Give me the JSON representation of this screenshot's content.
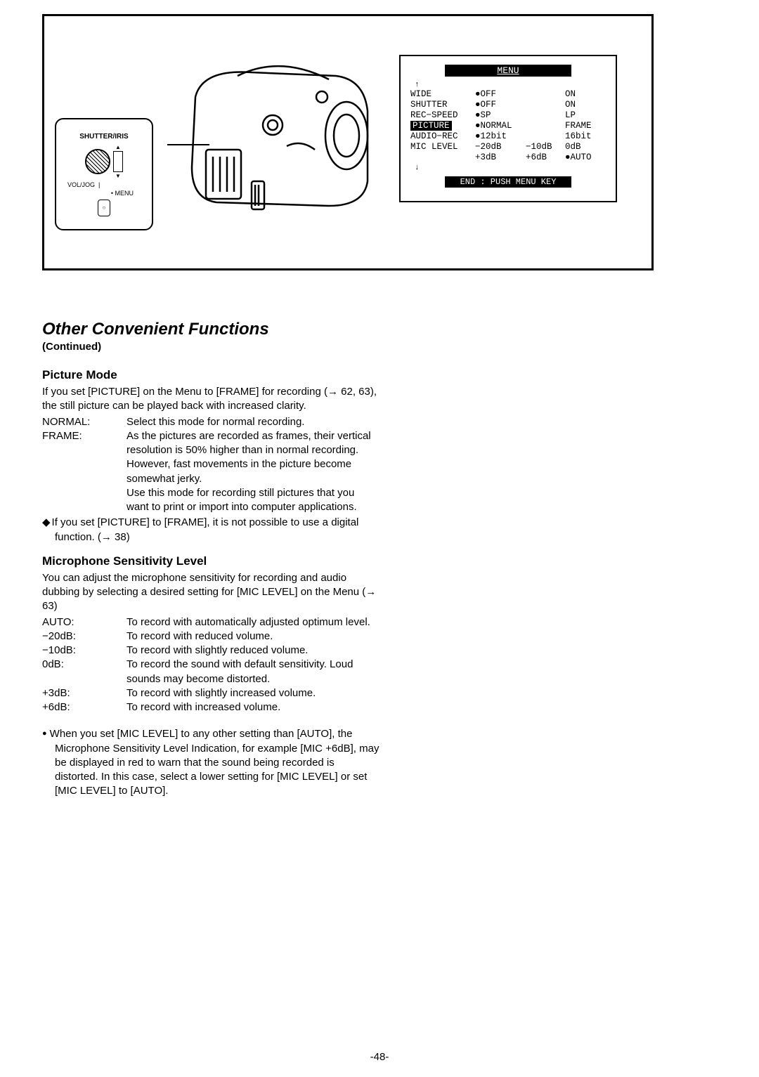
{
  "page_number": "-48-",
  "diagram": {
    "control_panel": {
      "title": "SHUTTER/IRIS",
      "vol_jog": "VOL/JOG",
      "line_mark": "|",
      "menu_label": "• MENU",
      "circle_mark": "○"
    },
    "menu_screen": {
      "title": "MENU",
      "rows": [
        {
          "name": "WIDE",
          "highlighted": false,
          "c1": "●OFF",
          "c1_dot": true,
          "c2": "",
          "c3": "ON"
        },
        {
          "name": "SHUTTER",
          "highlighted": false,
          "c1": "●OFF",
          "c1_dot": true,
          "c2": "",
          "c3": "ON"
        },
        {
          "name": "REC−SPEED",
          "highlighted": false,
          "c1": "●SP",
          "c1_dot": true,
          "c2": "",
          "c3": "LP"
        },
        {
          "name": "PICTURE",
          "highlighted": true,
          "c1": "●NORMAL",
          "c1_dot": true,
          "c2": "",
          "c3": "FRAME"
        },
        {
          "name": "AUDIO−REC",
          "highlighted": false,
          "c1": "●12bit",
          "c1_dot": true,
          "c2": "",
          "c3": "16bit"
        },
        {
          "name": "MIC  LEVEL",
          "highlighted": false,
          "c1": " −20dB",
          "c1_dot": false,
          "c2": "−10dB",
          "c3": "0dB"
        },
        {
          "name": "",
          "highlighted": false,
          "c1": " +3dB",
          "c1_dot": false,
          "c2": "+6dB",
          "c3": "●AUTO",
          "c3_dot": true
        }
      ],
      "footer": "END : PUSH MENU KEY"
    }
  },
  "section": {
    "title": "Other Convenient Functions",
    "continued": "(Continued)",
    "picture_mode": {
      "heading": "Picture Mode",
      "intro": "If you set [PICTURE] on the Menu to [FRAME] for recording (→ 62, 63), the still picture can be played back with increased clarity.",
      "items": [
        {
          "term": "NORMAL:",
          "desc": "Select this mode for normal recording."
        },
        {
          "term": "FRAME:",
          "desc": "As the pictures are recorded as frames, their vertical resolution is 50% higher than in normal recording.\nHowever, fast movements in the picture become somewhat jerky.\nUse this mode for recording still pictures that you want to print or import into computer applications."
        }
      ],
      "note": "If you set [PICTURE] to [FRAME], it is not possible to use a digital function. (→ 38)"
    },
    "mic_level": {
      "heading": "Microphone Sensitivity Level",
      "intro": "You can adjust the microphone sensitivity for recording and audio dubbing by selecting a desired setting for [MIC LEVEL] on the Menu (→ 63)",
      "items": [
        {
          "term": "AUTO:",
          "desc": "To record with automatically adjusted optimum level."
        },
        {
          "term": "−20dB:",
          "desc": "To record with reduced volume."
        },
        {
          "term": "−10dB:",
          "desc": "To record with slightly reduced volume."
        },
        {
          "term": "0dB:",
          "desc": "To record the sound with default sensitivity. Loud sounds may become distorted."
        },
        {
          "term": "+3dB:",
          "desc": "To record with slightly increased volume."
        },
        {
          "term": "+6dB:",
          "desc": "To record with increased volume."
        }
      ],
      "note": "When you set [MIC LEVEL] to any other setting than [AUTO], the Microphone Sensitivity Level Indication, for example [MIC +6dB], may be displayed in red to warn that the sound being recorded is distorted. In this case, select a lower setting for [MIC LEVEL] or set [MIC LEVEL] to [AUTO]."
    }
  }
}
